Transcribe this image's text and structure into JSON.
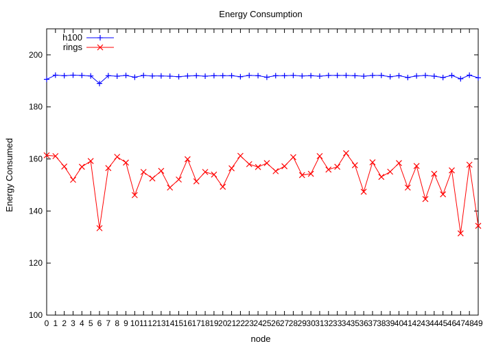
{
  "chart_data": {
    "type": "line",
    "title": "Energy Consumption",
    "xlabel": "node",
    "ylabel": "Energy Consumed",
    "ylim": [
      100,
      210
    ],
    "yticks": [
      100,
      120,
      140,
      160,
      180,
      200
    ],
    "xlim": [
      0,
      49
    ],
    "x": [
      0,
      1,
      2,
      3,
      4,
      5,
      6,
      7,
      8,
      9,
      10,
      11,
      12,
      13,
      14,
      15,
      16,
      17,
      18,
      19,
      20,
      21,
      22,
      23,
      24,
      25,
      26,
      27,
      28,
      29,
      30,
      31,
      32,
      33,
      34,
      35,
      36,
      37,
      38,
      39,
      40,
      41,
      42,
      43,
      44,
      45,
      46,
      47,
      48,
      49
    ],
    "grid": false,
    "legend_position": "top-left",
    "series": [
      {
        "name": "h100",
        "color": "#0000ff",
        "marker": "plus",
        "values": [
          190.6,
          192.2,
          192.0,
          192.2,
          192.1,
          191.9,
          189.0,
          192.0,
          191.8,
          192.1,
          191.4,
          192.1,
          191.9,
          191.9,
          191.8,
          191.6,
          191.9,
          192.0,
          191.8,
          192.0,
          192.0,
          192.0,
          191.6,
          192.1,
          192.0,
          191.4,
          192.0,
          192.0,
          192.1,
          191.9,
          192.0,
          191.8,
          192.1,
          192.1,
          192.1,
          192.0,
          191.8,
          192.1,
          192.1,
          191.6,
          192.0,
          191.3,
          191.9,
          192.1,
          191.8,
          191.3,
          192.1,
          190.8,
          192.2,
          191.2
        ]
      },
      {
        "name": "rings",
        "color": "#ff0000",
        "marker": "cross",
        "values": [
          161.4,
          161.1,
          157.1,
          152.0,
          157.0,
          159.2,
          133.4,
          156.5,
          160.8,
          158.6,
          146.1,
          155.0,
          152.5,
          155.4,
          149.0,
          152.1,
          159.9,
          151.4,
          155.0,
          154.0,
          149.3,
          156.4,
          161.2,
          158.0,
          156.9,
          158.4,
          155.3,
          157.2,
          160.7,
          153.8,
          154.3,
          161.1,
          155.9,
          157.0,
          162.2,
          157.6,
          147.4,
          158.7,
          153.1,
          155.1,
          158.4,
          149.0,
          157.3,
          144.6,
          154.3,
          146.4,
          155.6,
          131.4,
          157.8,
          134.3
        ]
      }
    ]
  }
}
